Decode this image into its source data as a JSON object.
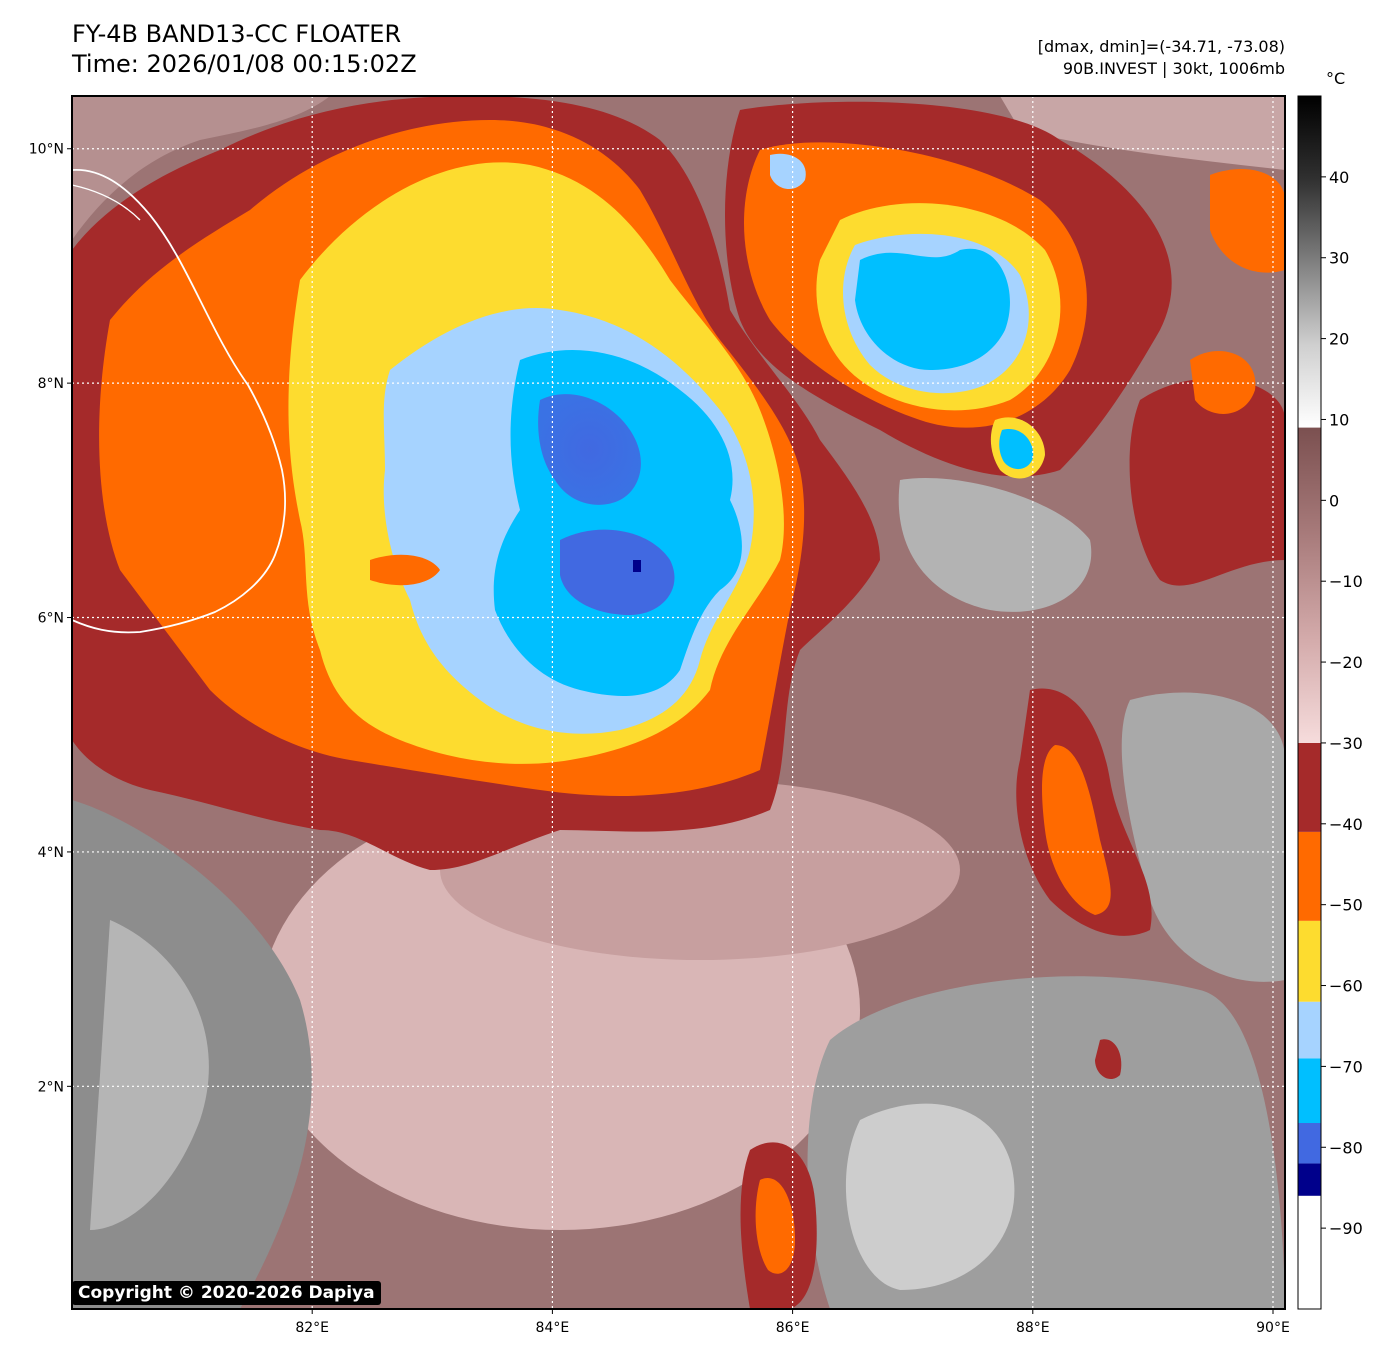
{
  "header": {
    "title": "FY-4B BAND13-CC FLOATER",
    "time": "Time: 2026/01/08 00:15:02Z",
    "dmax_dmin": "[dmax, dmin]=(-34.71, -73.08)",
    "storm": "90B.INVEST | 30kt, 1006mb"
  },
  "map": {
    "lon_range": [
      80.0,
      90.1
    ],
    "lat_range": [
      0.1,
      10.45
    ],
    "lon_ticks": [
      {
        "value": 82,
        "label": "82°E"
      },
      {
        "value": 84,
        "label": "84°E"
      },
      {
        "value": 86,
        "label": "86°E"
      },
      {
        "value": 88,
        "label": "88°E"
      },
      {
        "value": 90,
        "label": "90°E"
      }
    ],
    "lat_ticks": [
      {
        "value": 2,
        "label": "2°N"
      },
      {
        "value": 4,
        "label": "4°N"
      },
      {
        "value": 6,
        "label": "6°N"
      },
      {
        "value": 8,
        "label": "8°N"
      },
      {
        "value": 10,
        "label": "10°N"
      }
    ],
    "gridlines": true
  },
  "colorbar": {
    "unit": "°C",
    "range": [
      -100,
      50
    ],
    "ticks": [
      {
        "value": 40,
        "label": "40"
      },
      {
        "value": 30,
        "label": "30"
      },
      {
        "value": 20,
        "label": "20"
      },
      {
        "value": 10,
        "label": "10"
      },
      {
        "value": 0,
        "label": "0"
      },
      {
        "value": -10,
        "label": "−10"
      },
      {
        "value": -20,
        "label": "−20"
      },
      {
        "value": -30,
        "label": "−30"
      },
      {
        "value": -40,
        "label": "−40"
      },
      {
        "value": -50,
        "label": "−50"
      },
      {
        "value": -60,
        "label": "−60"
      },
      {
        "value": -70,
        "label": "−70"
      },
      {
        "value": -80,
        "label": "−80"
      },
      {
        "value": -90,
        "label": "−90"
      }
    ],
    "bands": [
      {
        "from": -100,
        "to": -86,
        "color": "#ffffff"
      },
      {
        "from": -86,
        "to": -82,
        "color": "#00008b"
      },
      {
        "from": -82,
        "to": -77,
        "color": "#4169e1"
      },
      {
        "from": -77,
        "to": -69,
        "color": "#00bfff"
      },
      {
        "from": -69,
        "to": -62,
        "color": "#a6d3ff"
      },
      {
        "from": -62,
        "to": -52,
        "color": "#fddc2f"
      },
      {
        "from": -52,
        "to": -41,
        "color": "#ff6a00"
      },
      {
        "from": -41,
        "to": -30,
        "color": "#a52a2a"
      },
      {
        "from": -30,
        "to": 9,
        "gradient": [
          "#f6dcdc",
          "#d3aaaa",
          "#a77a7a",
          "#7b5050"
        ]
      },
      {
        "from": 9,
        "to": 50,
        "gradient": [
          "#ffffff",
          "#cfcfcf",
          "#7f7f7f",
          "#303030",
          "#000000"
        ]
      }
    ]
  },
  "copyright": "Copyright © 2020-2026 Dapiya"
}
